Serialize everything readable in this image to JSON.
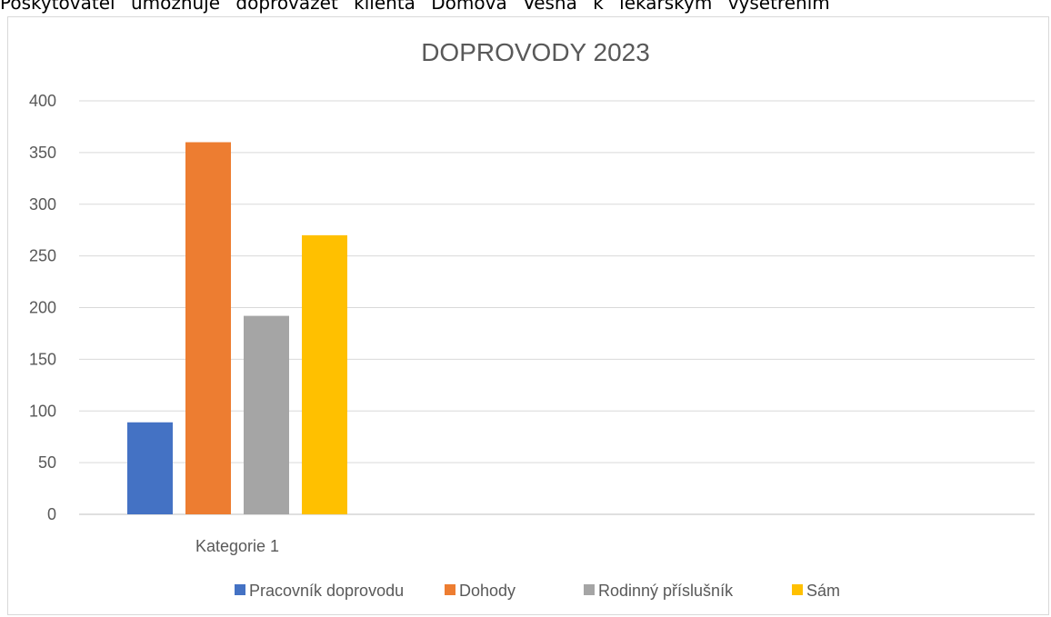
{
  "page": {
    "top_text": "Poskytovatel  umožňuje  doprovázet  klienta  Domova  Věsná  k lékařským  vyšetřením"
  },
  "chart_data": {
    "type": "bar",
    "title": "DOPROVODY 2023",
    "categories": [
      "Kategorie 1"
    ],
    "series": [
      {
        "name": "Pracovník doprovodu",
        "values": [
          89
        ],
        "color": "#4472C4"
      },
      {
        "name": "Dohody",
        "values": [
          360
        ],
        "color": "#ED7D31"
      },
      {
        "name": "Rodinný příslušník",
        "values": [
          192
        ],
        "color": "#A5A5A5"
      },
      {
        "name": "Sám",
        "values": [
          270
        ],
        "color": "#FFC000"
      }
    ],
    "ylim": [
      0,
      400
    ],
    "yticks": [
      0,
      50,
      100,
      150,
      200,
      250,
      300,
      350,
      400
    ],
    "grid": true,
    "legend": "bottom",
    "xlabel": "",
    "ylabel": ""
  }
}
